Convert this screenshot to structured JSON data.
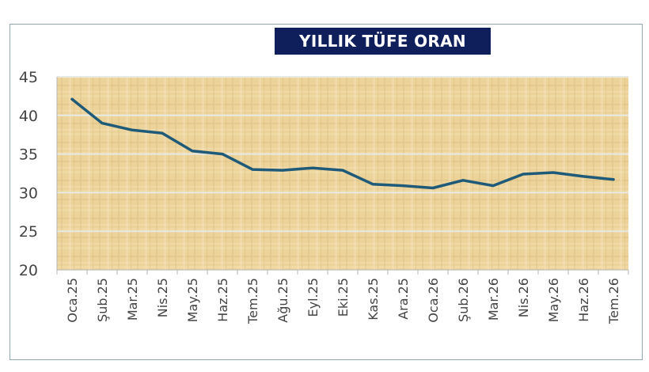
{
  "chart_data": {
    "type": "line",
    "title": "YILLIK TÜFE ORAN",
    "categories": [
      "Oca.25",
      "Şub.25",
      "Mar.25",
      "Nis.25",
      "May.25",
      "Haz.25",
      "Tem.25",
      "Ağu.25",
      "Eyl.25",
      "Eki.25",
      "Kas.25",
      "Ara.25",
      "Oca.26",
      "Şub.26",
      "Mar.26",
      "Nis.26",
      "May.26",
      "Haz.26",
      "Tem.26"
    ],
    "series": [
      {
        "values": [
          42.1,
          39.0,
          38.1,
          37.7,
          35.4,
          35.0,
          33.0,
          32.9,
          33.2,
          32.9,
          31.1,
          30.9,
          30.6,
          31.6,
          30.9,
          32.4,
          32.6,
          32.1,
          31.7
        ]
      }
    ],
    "yticks": [
      "20",
      "25",
      "30",
      "35",
      "40",
      "45"
    ],
    "ylim": [
      20,
      45
    ],
    "grid": true,
    "colors": {
      "line": "#1f5a78",
      "title_bg": "#0f1f5c",
      "plot_bg": "#ecd39a",
      "grid": "#e9e9e4"
    }
  }
}
